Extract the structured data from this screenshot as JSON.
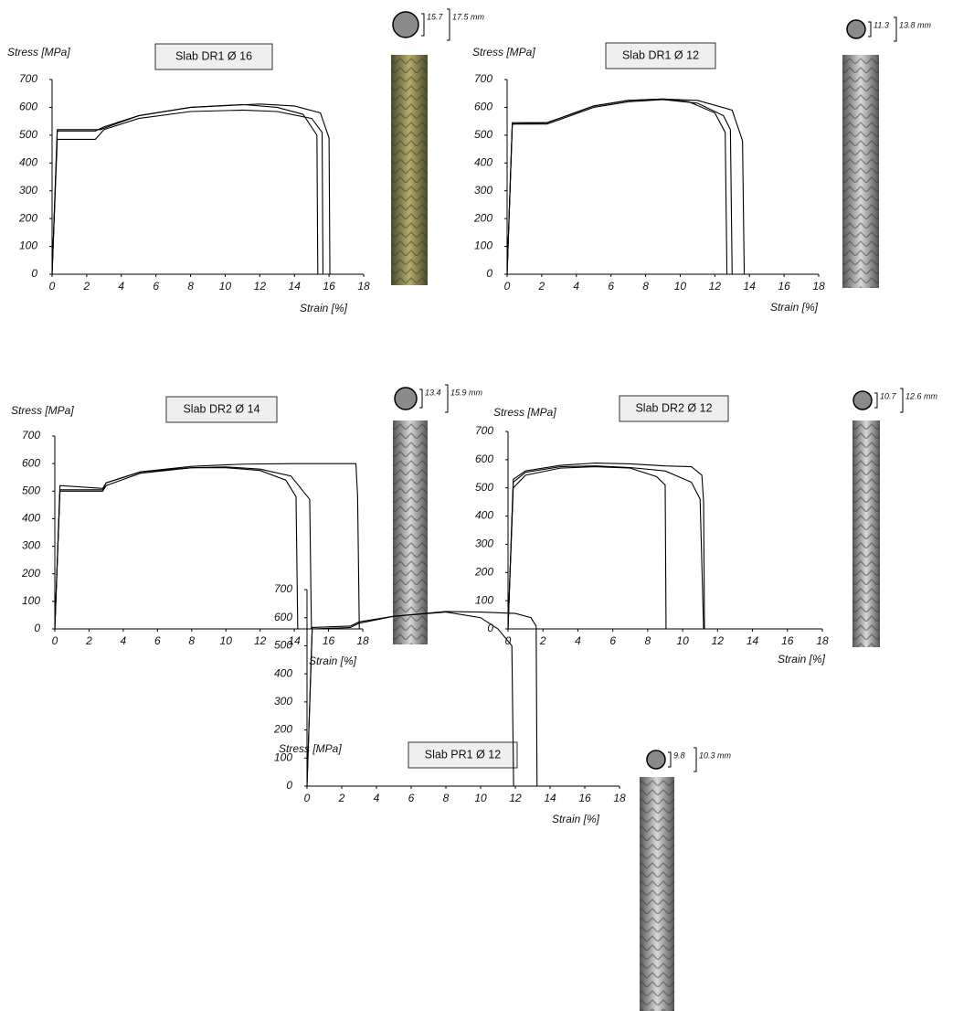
{
  "chart_data": [
    {
      "type": "line",
      "title": "Slab DR1  Ø 16",
      "y_label": "Stress [MPa]",
      "x_label": "Strain [%]",
      "annotations": [
        "15.7",
        "17.5 mm"
      ],
      "xlim": [
        0,
        18
      ],
      "ylim": [
        0,
        700
      ],
      "xticks": [
        0,
        2,
        4,
        6,
        8,
        10,
        12,
        14,
        16,
        18
      ],
      "yticks": [
        0,
        100,
        200,
        300,
        400,
        500,
        600,
        700
      ],
      "series": [
        {
          "color": "#000000",
          "x": [
            0,
            0.3,
            2.5,
            3,
            5,
            8,
            11,
            13,
            14.5,
            15.3,
            15.35
          ],
          "values": [
            0,
            515,
            515,
            530,
            570,
            600,
            610,
            600,
            575,
            500,
            0
          ]
        },
        {
          "color": "#000000",
          "x": [
            0,
            0.3,
            2.5,
            3,
            5,
            8,
            11,
            13,
            15,
            15.6,
            15.65
          ],
          "values": [
            0,
            485,
            485,
            520,
            560,
            585,
            590,
            585,
            560,
            510,
            0
          ]
        },
        {
          "color": "#000000",
          "x": [
            0,
            0.3,
            2.8,
            3,
            5,
            8,
            12,
            14,
            15.5,
            16,
            16.05
          ],
          "values": [
            0,
            520,
            520,
            525,
            570,
            600,
            612,
            605,
            580,
            490,
            0
          ]
        }
      ]
    },
    {
      "type": "line",
      "title": "Slab DR1  Ø 12",
      "y_label": "Stress [MPa]",
      "x_label": "Strain [%]",
      "annotations": [
        "11.3",
        "13.8 mm"
      ],
      "xlim": [
        0,
        18
      ],
      "ylim": [
        0,
        700
      ],
      "xticks": [
        0,
        2,
        4,
        6,
        8,
        10,
        12,
        14,
        16,
        18
      ],
      "yticks": [
        0,
        100,
        200,
        300,
        400,
        500,
        600,
        700
      ],
      "series": [
        {
          "color": "#000000",
          "x": [
            0,
            0.3,
            2.3,
            3,
            5,
            7,
            9,
            10.5,
            12,
            12.6,
            12.7
          ],
          "values": [
            0,
            545,
            545,
            560,
            605,
            625,
            630,
            620,
            580,
            510,
            0
          ]
        },
        {
          "color": "#000000",
          "x": [
            0,
            0.3,
            2.3,
            3,
            5,
            7,
            9,
            11,
            12.5,
            12.9,
            13
          ],
          "values": [
            0,
            540,
            540,
            555,
            600,
            620,
            628,
            615,
            570,
            520,
            0
          ]
        },
        {
          "color": "#000000",
          "x": [
            0,
            0.3,
            2.3,
            3,
            5,
            7,
            9,
            11,
            13,
            13.6,
            13.7,
            18
          ],
          "values": [
            0,
            540,
            545,
            560,
            605,
            625,
            630,
            625,
            590,
            480,
            0,
            0
          ]
        }
      ]
    },
    {
      "type": "line",
      "title": "Slab DR2  Ø 14",
      "y_label": "Stress [MPa]",
      "x_label": "Strain [%]",
      "annotations": [
        "13.4",
        "15.9 mm"
      ],
      "xlim": [
        0,
        18
      ],
      "ylim": [
        0,
        700
      ],
      "xticks": [
        0,
        2,
        4,
        6,
        8,
        10,
        12,
        14,
        16,
        18
      ],
      "yticks": [
        0,
        100,
        200,
        300,
        400,
        500,
        600,
        700
      ],
      "series": [
        {
          "color": "#000000",
          "x": [
            0,
            0.3,
            2.8,
            3,
            5,
            8,
            10,
            12,
            13.5,
            14.1,
            14.2
          ],
          "values": [
            0,
            520,
            510,
            530,
            570,
            585,
            585,
            575,
            540,
            480,
            0
          ]
        },
        {
          "color": "#000000",
          "x": [
            0,
            0.3,
            2.8,
            3,
            5,
            8,
            10,
            12,
            13.8,
            14.9,
            15
          ],
          "values": [
            0,
            500,
            500,
            520,
            565,
            585,
            588,
            580,
            555,
            470,
            0
          ]
        },
        {
          "color": "#000000",
          "x": [
            0,
            0.3,
            2.8,
            3,
            5,
            8,
            11,
            14,
            17.6,
            17.7,
            17.8
          ],
          "values": [
            0,
            505,
            505,
            530,
            570,
            590,
            598,
            600,
            600,
            480,
            0
          ]
        }
      ]
    },
    {
      "type": "line",
      "title": "Slab DR2  Ø 12",
      "y_label": "Stress [MPa]",
      "x_label": "Strain [%]",
      "annotations": [
        "10.7",
        "12.6 mm"
      ],
      "xlim": [
        0,
        18
      ],
      "ylim": [
        0,
        700
      ],
      "xticks": [
        0,
        2,
        4,
        6,
        8,
        10,
        12,
        14,
        16,
        18
      ],
      "yticks": [
        0,
        100,
        200,
        300,
        400,
        500,
        600,
        700
      ],
      "series": [
        {
          "color": "#000000",
          "x": [
            0,
            0.3,
            1,
            3,
            5,
            7,
            8.5,
            9,
            9.05
          ],
          "values": [
            0,
            500,
            545,
            570,
            575,
            570,
            540,
            510,
            0
          ]
        },
        {
          "color": "#000000",
          "x": [
            0,
            0.3,
            1,
            3,
            5,
            7,
            9,
            10.5,
            11,
            11.2
          ],
          "values": [
            0,
            520,
            555,
            575,
            578,
            572,
            560,
            520,
            460,
            0
          ]
        },
        {
          "color": "#000000",
          "x": [
            0,
            0.3,
            1,
            3,
            5,
            7,
            9,
            10.5,
            11.1,
            11.2,
            11.25,
            18
          ],
          "values": [
            0,
            530,
            560,
            580,
            588,
            585,
            578,
            575,
            545,
            450,
            0,
            0
          ]
        }
      ]
    },
    {
      "type": "line",
      "title": "Slab PR1  Ø 12",
      "y_label": "Stress [MPa]",
      "x_label": "Strain [%]",
      "annotations": [
        "9.8",
        "10.3 mm"
      ],
      "xlim": [
        0,
        18
      ],
      "ylim": [
        0,
        700
      ],
      "xticks": [
        0,
        2,
        4,
        6,
        8,
        10,
        12,
        14,
        16,
        18
      ],
      "yticks": [
        0,
        100,
        200,
        300,
        400,
        500,
        600,
        700
      ],
      "series": [
        {
          "color": "#000000",
          "x": [
            0,
            0.3,
            2.5,
            3,
            5,
            8,
            10,
            11,
            11.8,
            11.9
          ],
          "values": [
            0,
            565,
            570,
            585,
            605,
            620,
            600,
            560,
            500,
            0
          ]
        },
        {
          "color": "#000000",
          "x": [
            0,
            0.3,
            2.5,
            3,
            5,
            8,
            10,
            12,
            12.9,
            13.2,
            13.25,
            18
          ],
          "values": [
            0,
            560,
            565,
            580,
            605,
            622,
            620,
            615,
            600,
            570,
            0,
            0
          ]
        }
      ]
    }
  ]
}
